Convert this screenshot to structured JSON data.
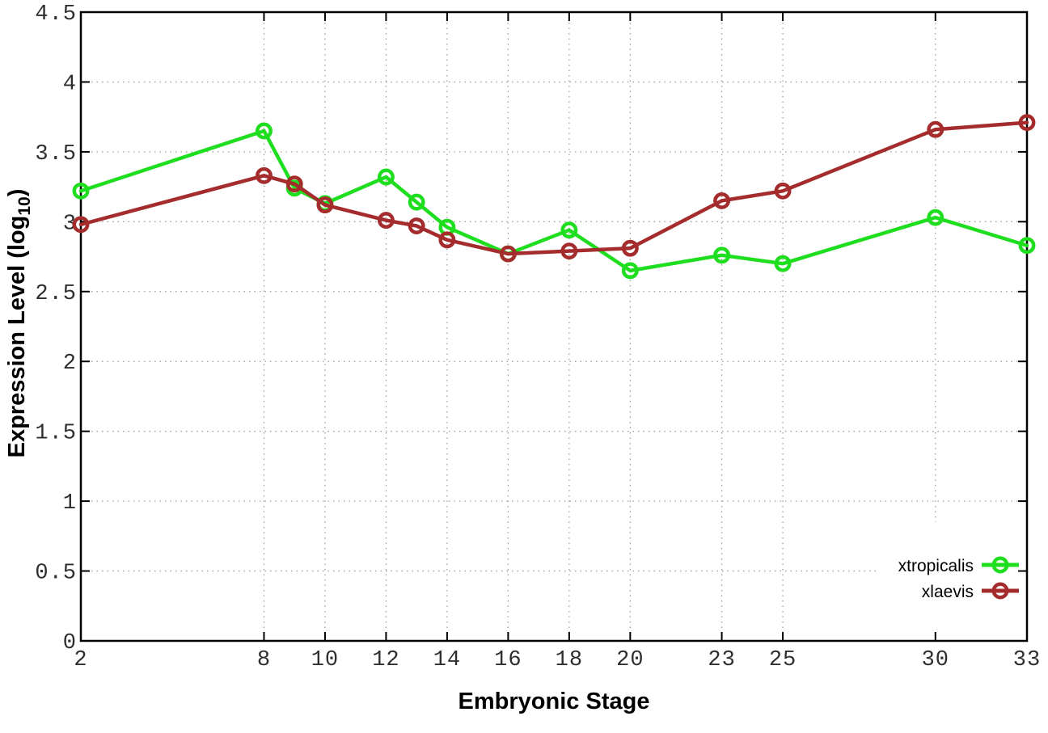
{
  "figure": {
    "background_color": "#ffffff",
    "border_color": "#000000",
    "grid_color": "#9e9e9e",
    "tick_label_color": "#2e2e2e"
  },
  "chart_data": {
    "type": "line",
    "title": "",
    "xlabel": "Embryonic Stage",
    "ylabel": "Expression Level (log10)",
    "ylabel_parts": {
      "pre": "Expression Level (log",
      "sub": "10",
      "post": ")"
    },
    "xlim": [
      2,
      33
    ],
    "ylim": [
      0,
      4.5
    ],
    "x_ticks": [
      2,
      8,
      10,
      12,
      14,
      16,
      18,
      20,
      23,
      25,
      30,
      33
    ],
    "y_ticks": [
      0,
      0.5,
      1,
      1.5,
      2,
      2.5,
      3,
      3.5,
      4,
      4.5
    ],
    "y_tick_labels": [
      "0",
      "0.5",
      "1",
      "1.5",
      "2",
      "2.5",
      "3",
      "3.5",
      "4",
      "4.5"
    ],
    "grid": "dotted",
    "legend_position": "bottom-right",
    "marker": "open-circle",
    "x": [
      2,
      8,
      9,
      10,
      12,
      13,
      14,
      16,
      18,
      20,
      23,
      25,
      30,
      33
    ],
    "series": [
      {
        "name": "xtropicalis",
        "color": "#1fdd1f",
        "values": [
          3.22,
          3.65,
          3.24,
          3.13,
          3.32,
          3.14,
          2.96,
          2.77,
          2.94,
          2.65,
          2.76,
          2.7,
          3.03,
          2.83
        ]
      },
      {
        "name": "xlaevis",
        "color": "#a52c2c",
        "values": [
          2.98,
          3.33,
          3.27,
          3.12,
          3.01,
          2.97,
          2.87,
          2.77,
          2.79,
          2.81,
          3.15,
          3.22,
          3.66,
          3.71
        ]
      }
    ]
  }
}
